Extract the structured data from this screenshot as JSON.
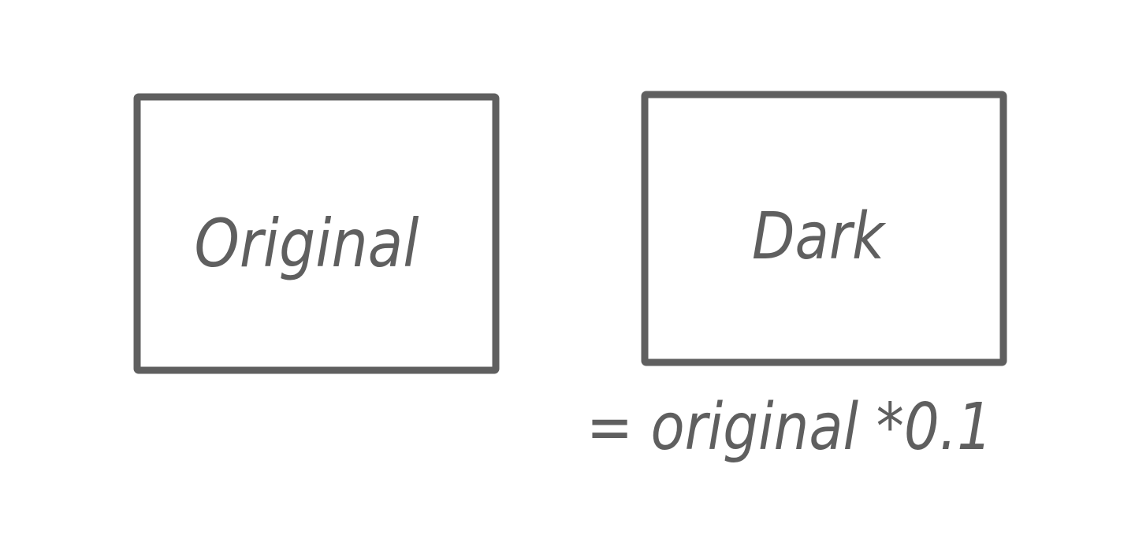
{
  "diagram": {
    "stroke_color": "#5f5f5f",
    "background": "#ffffff",
    "boxes": [
      {
        "label": "Original"
      },
      {
        "label": "Dark"
      }
    ],
    "formula": "= original *0.1"
  }
}
